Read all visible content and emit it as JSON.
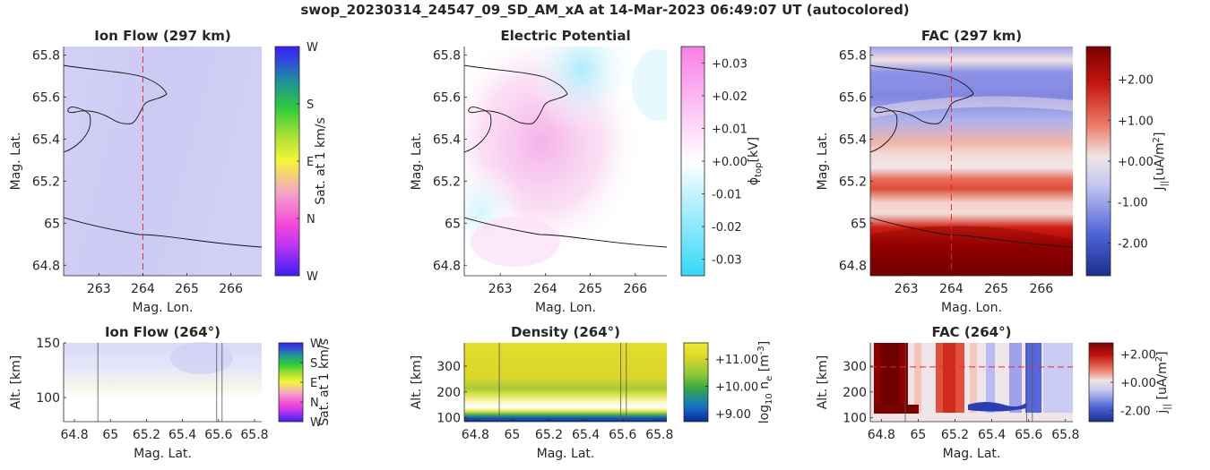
{
  "figure": {
    "title": "swop_20230314_24547_09_SD_AM_xA at 14-Mar-2023 06:49:07 UT (autocolored)"
  },
  "colors": {
    "ion_flow_bg": "#cfcdf4",
    "potential_pink": "#f6b7ea",
    "potential_cyan": "#b6eefb",
    "fac_red": "#d02418",
    "fac_darkred": "#7a0000",
    "fac_blue": "#8d93e6",
    "density_yellow": "#e2dc2a",
    "density_green": "#86c13a",
    "density_blue": "#0b3fa6",
    "satellite_track": "#e8272a",
    "coastline": "#000000"
  },
  "chart_data": [
    {
      "id": "ion_flow_map",
      "type": "heatmap",
      "title": "Ion Flow (297 km)",
      "xlabel": "Mag. Lon.",
      "ylabel": "Mag. Lat.",
      "xlim": [
        262.2,
        266.7
      ],
      "ylim": [
        64.75,
        65.84
      ],
      "xticks": [
        263,
        264,
        265,
        266
      ],
      "xtick_labels": [
        "263",
        "264",
        "265",
        "266"
      ],
      "yticks": [
        64.8,
        65,
        65.2,
        65.4,
        65.6,
        65.8
      ],
      "ytick_labels": [
        "64.8",
        "65",
        "65.2",
        "65.4",
        "65.6",
        "65.8"
      ],
      "track_lon": 264,
      "colorbar": {
        "label": "Sat. at 1 km/s",
        "tick_labels": [
          "W",
          "N",
          "E",
          "S",
          "W"
        ],
        "stops": [
          "#3b1ef5",
          "#b233f2",
          "#f546d9",
          "#f2a3c8",
          "#f5f53a",
          "#b3e330",
          "#2dcc3a",
          "#1f8f9c",
          "#2e4fd6",
          "#3b1ef5"
        ]
      }
    },
    {
      "id": "potential_map",
      "type": "heatmap",
      "title": "Electric Potential",
      "xlabel": "Mag. Lon.",
      "ylabel": "Mag. Lat.",
      "xlim": [
        262.2,
        266.7
      ],
      "ylim": [
        64.75,
        65.84
      ],
      "xticks": [
        263,
        264,
        265,
        266
      ],
      "xtick_labels": [
        "263",
        "264",
        "265",
        "266"
      ],
      "yticks": [
        64.8,
        65,
        65.2,
        65.4,
        65.6,
        65.8
      ],
      "ytick_labels": [
        "64.8",
        "65",
        "65.2",
        "65.4",
        "65.6",
        "65.8"
      ],
      "colorbar": {
        "label": "ϕtop [kV]",
        "label_main": "ϕ",
        "label_sub": "top",
        "label_unit": "[kV]",
        "range": [
          -0.035,
          0.035
        ],
        "ticks": [
          -0.03,
          -0.02,
          -0.01,
          0,
          0.01,
          0.02,
          0.03
        ],
        "tick_labels": [
          "-0.03",
          "-0.02",
          "-0.01",
          "+0.00",
          "+0.01",
          "+0.02",
          "+0.03"
        ],
        "stops": [
          "#33d9f7",
          "#ffffff",
          "#f77ee6"
        ]
      }
    },
    {
      "id": "fac_map",
      "type": "heatmap",
      "title": "FAC (297 km)",
      "xlabel": "Mag. Lon.",
      "ylabel": "Mag. Lat.",
      "xlim": [
        262.2,
        266.7
      ],
      "ylim": [
        64.75,
        65.84
      ],
      "xticks": [
        263,
        264,
        265,
        266
      ],
      "xtick_labels": [
        "263",
        "264",
        "265",
        "266"
      ],
      "yticks": [
        64.8,
        65,
        65.2,
        65.4,
        65.6,
        65.8
      ],
      "ytick_labels": [
        "64.8",
        "65",
        "65.2",
        "65.4",
        "65.6",
        "65.8"
      ],
      "track_lon": 264,
      "colorbar": {
        "label": "J|| [uA/m2]",
        "label_main": "J",
        "label_sub": "||",
        "label_unit": "[uA/m",
        "label_sup": "2",
        "label_end": "]",
        "range": [
          -2.8,
          2.8
        ],
        "ticks": [
          -2,
          -1,
          0,
          1,
          2
        ],
        "tick_labels": [
          "-2.00",
          "-1.00",
          "+0.00",
          "+1.00",
          "+2.00"
        ],
        "stops": [
          "#1b2f8a",
          "#4d63d6",
          "#c6c8f1",
          "#f0e4e4",
          "#ec7a66",
          "#c5150f",
          "#7a0000"
        ]
      }
    },
    {
      "id": "ion_flow_alt",
      "type": "heatmap",
      "title": "Ion Flow (264°)",
      "xlabel": "Mag. Lat.",
      "ylabel": "Alt. [km]",
      "xlim": [
        64.74,
        65.84
      ],
      "ylim": [
        78,
        150
      ],
      "xticks": [
        64.8,
        65,
        65.2,
        65.4,
        65.6,
        65.8
      ],
      "xtick_labels": [
        "64.8",
        "65",
        "65.2",
        "65.4",
        "65.6",
        "65.8"
      ],
      "yticks": [
        100,
        150
      ],
      "ytick_labels": [
        "100",
        "150"
      ],
      "marker_lats": [
        64.93,
        65.59,
        65.62
      ],
      "colorbar": {
        "label": "Sat. at 1 km/s",
        "tick_labels": [
          "W",
          "N",
          "E",
          "S",
          "W"
        ],
        "stops": [
          "#3b1ef5",
          "#b233f2",
          "#f546d9",
          "#f2a3c8",
          "#f5f53a",
          "#b3e330",
          "#2dcc3a",
          "#1f8f9c",
          "#2e4fd6",
          "#3b1ef5"
        ]
      }
    },
    {
      "id": "density_alt",
      "type": "heatmap",
      "title": "Density (264°)",
      "xlabel": "Mag. Lat.",
      "ylabel": "Alt. [km]",
      "xlim": [
        64.74,
        65.84
      ],
      "ylim": [
        85,
        390
      ],
      "xticks": [
        64.8,
        65,
        65.2,
        65.4,
        65.6,
        65.8
      ],
      "xtick_labels": [
        "64.8",
        "65",
        "65.2",
        "65.4",
        "65.6",
        "65.8"
      ],
      "yticks": [
        100,
        200,
        300
      ],
      "ytick_labels": [
        "100",
        "200",
        "300"
      ],
      "marker_lats": [
        64.93,
        65.59,
        65.62
      ],
      "colorbar": {
        "label": "log10 ne [m-3]",
        "label_main": "log",
        "label_sub": "10",
        "label_mid": " n",
        "label_sub2": "e",
        "label_unit": " [m",
        "label_sup": "-3",
        "label_end": "]",
        "range": [
          8.7,
          11.6
        ],
        "ticks": [
          9,
          10,
          11
        ],
        "tick_labels": [
          "+9.00",
          "+10.00",
          "+11.00"
        ],
        "stops": [
          "#0a2a96",
          "#1575c8",
          "#35a845",
          "#8fc83a",
          "#d7d92b",
          "#f0ea2e"
        ]
      }
    },
    {
      "id": "fac_alt",
      "type": "heatmap",
      "title": "FAC (264°)",
      "xlabel": "Mag. Lat.",
      "ylabel": "Alt. [km]",
      "xlim": [
        64.74,
        65.84
      ],
      "ylim": [
        85,
        390
      ],
      "xticks": [
        64.8,
        65,
        65.2,
        65.4,
        65.6,
        65.8
      ],
      "xtick_labels": [
        "64.8",
        "65",
        "65.2",
        "65.4",
        "65.6",
        "65.8"
      ],
      "yticks": [
        100,
        200,
        300
      ],
      "ytick_labels": [
        "100",
        "200",
        "300"
      ],
      "marker_lats": [
        64.93,
        65.59,
        65.62
      ],
      "track_alt": 297,
      "colorbar": {
        "label": "j|| [uA/m2]",
        "label_main": "j",
        "label_sub": "||",
        "label_unit": " [uA/m",
        "label_sup": "2",
        "label_end": "]",
        "range": [
          -2.8,
          2.8
        ],
        "ticks": [
          -2,
          0,
          2
        ],
        "tick_labels": [
          "-2.00",
          "+0.00",
          "+2.00"
        ],
        "stops": [
          "#1b2f8a",
          "#4d63d6",
          "#c6c8f1",
          "#f0e4e4",
          "#ec7a66",
          "#c5150f",
          "#7a0000"
        ]
      }
    }
  ]
}
